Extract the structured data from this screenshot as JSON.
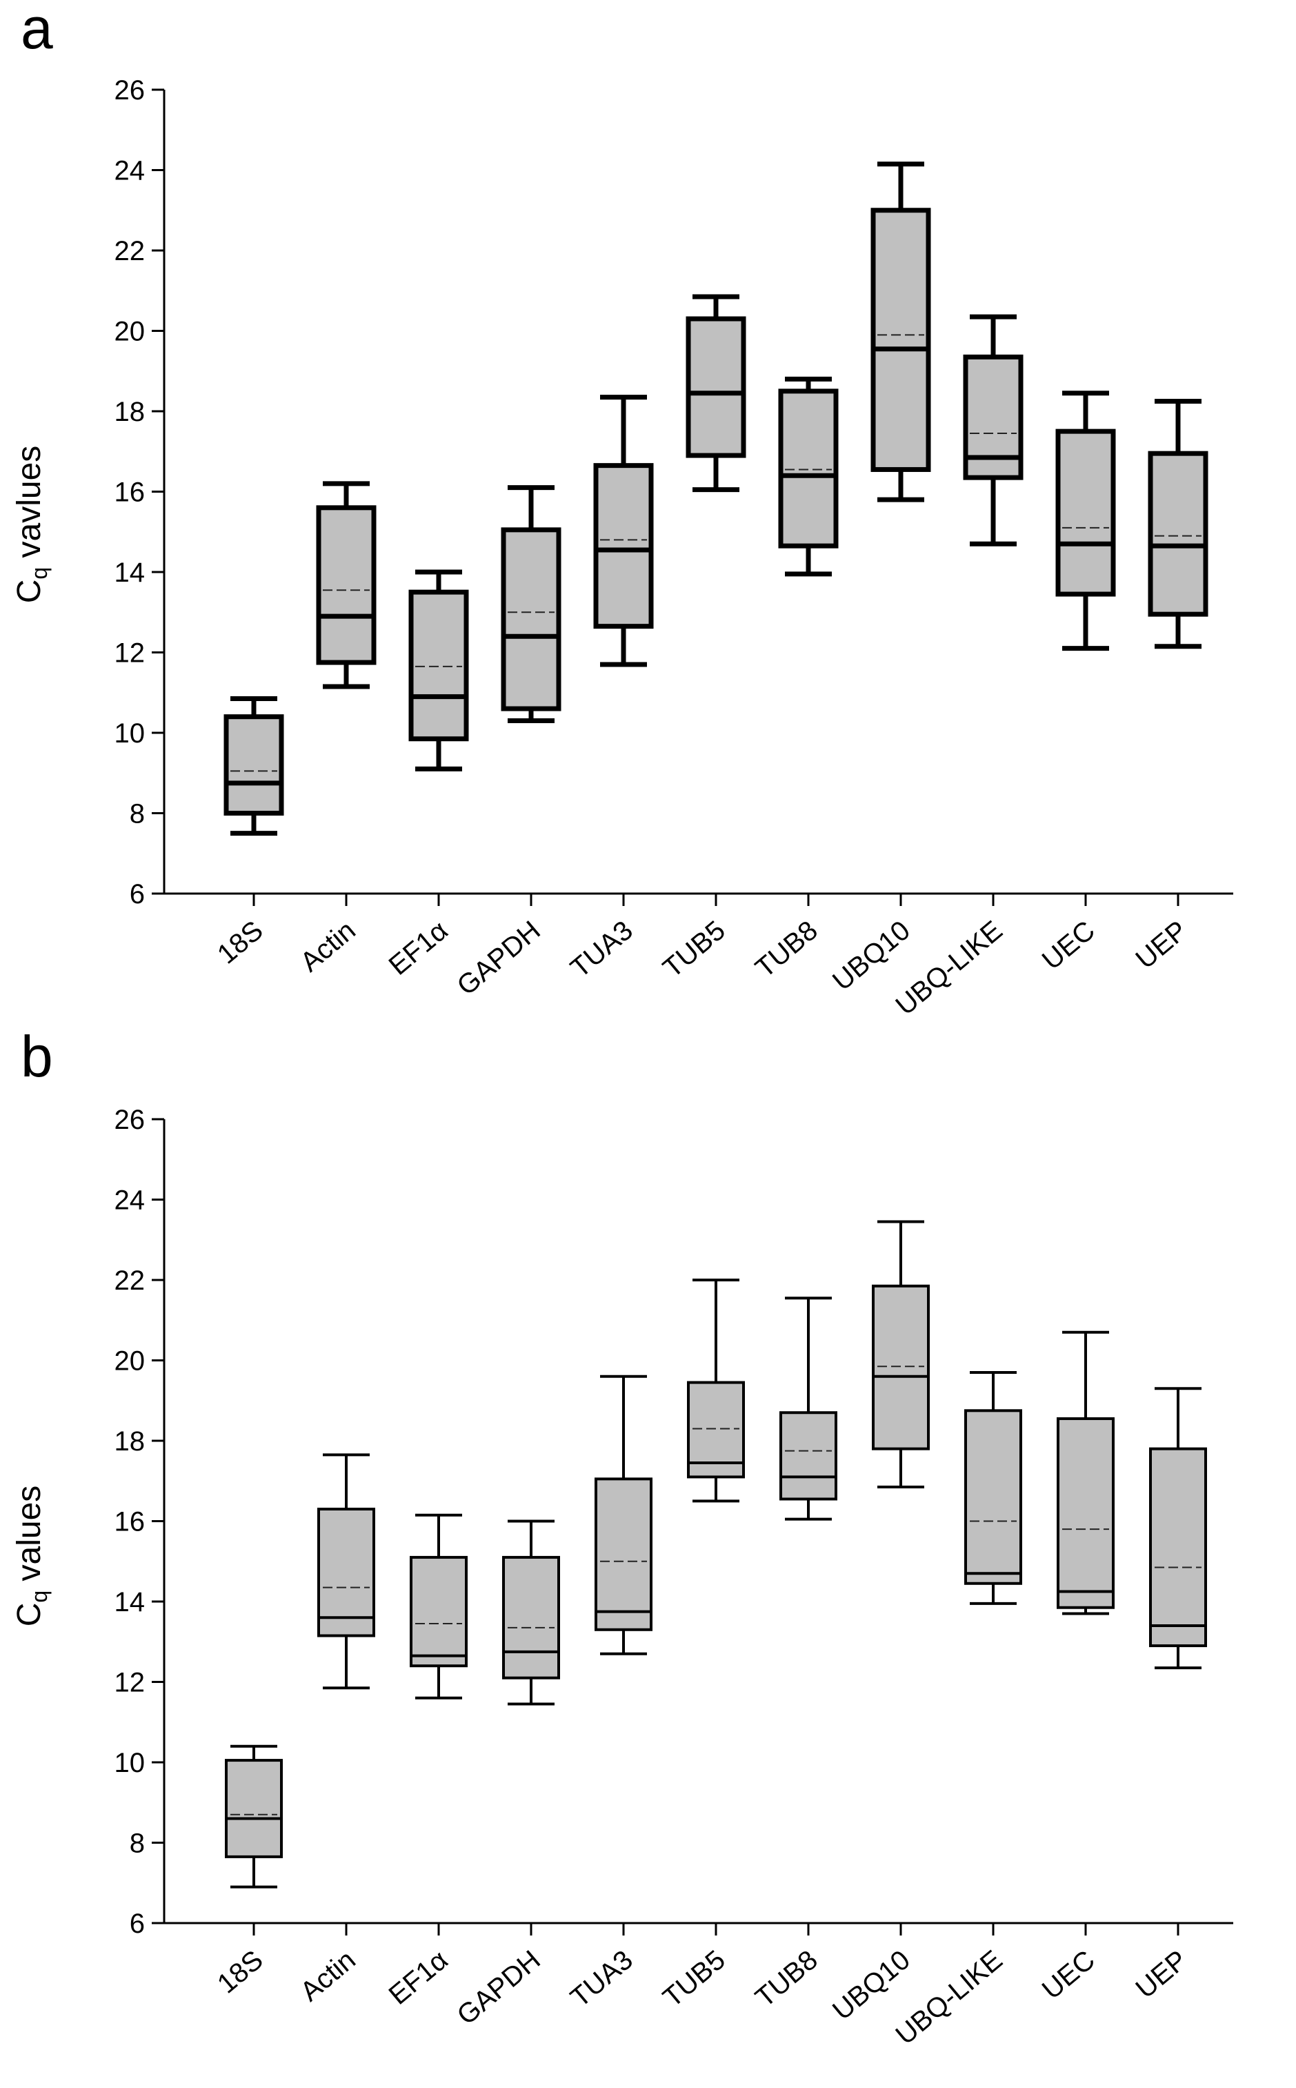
{
  "chart_data": [
    {
      "type": "box",
      "panel_label": "a",
      "ylabel_main": "C",
      "ylabel_subscript": "q",
      "ylabel_rest": " vavlues",
      "ylim": [
        6,
        26
      ],
      "yticks": [
        "6",
        "8",
        "10",
        "12",
        "14",
        "16",
        "18",
        "20",
        "22",
        "24",
        "26"
      ],
      "categories": [
        "18S",
        "Actin",
        "EF1α",
        "GAPDH",
        "TUA3",
        "TUB5",
        "TUB8",
        "UBQ10",
        "UBQ-LIKE",
        "UEC",
        "UEP"
      ],
      "boxes": [
        {
          "min": 7.5,
          "q1": 8.0,
          "median": 8.75,
          "mean": 9.05,
          "q3": 10.4,
          "max": 10.85
        },
        {
          "min": 11.15,
          "q1": 11.75,
          "median": 12.9,
          "mean": 13.55,
          "q3": 15.6,
          "max": 16.2
        },
        {
          "min": 9.1,
          "q1": 9.85,
          "median": 10.9,
          "mean": 11.65,
          "q3": 13.5,
          "max": 14.0
        },
        {
          "min": 10.3,
          "q1": 10.6,
          "median": 12.4,
          "mean": 13.0,
          "q3": 15.05,
          "max": 16.1
        },
        {
          "min": 11.7,
          "q1": 12.65,
          "median": 14.55,
          "mean": 14.8,
          "q3": 16.65,
          "max": 18.35
        },
        {
          "min": 16.05,
          "q1": 16.9,
          "median": 18.45,
          "mean": 18.45,
          "q3": 20.3,
          "max": 20.85
        },
        {
          "min": 13.95,
          "q1": 14.65,
          "median": 16.4,
          "mean": 16.55,
          "q3": 18.5,
          "max": 18.8
        },
        {
          "min": 15.8,
          "q1": 16.55,
          "median": 19.55,
          "mean": 19.9,
          "q3": 23.0,
          "max": 24.15
        },
        {
          "min": 14.7,
          "q1": 16.35,
          "median": 16.85,
          "mean": 17.45,
          "q3": 19.35,
          "max": 20.35
        },
        {
          "min": 12.1,
          "q1": 13.45,
          "median": 14.7,
          "mean": 15.1,
          "q3": 17.5,
          "max": 18.45
        },
        {
          "min": 12.15,
          "q1": 12.95,
          "median": 14.65,
          "mean": 14.9,
          "q3": 16.95,
          "max": 18.25
        }
      ]
    },
    {
      "type": "box",
      "panel_label": "b",
      "ylabel_main": "C",
      "ylabel_subscript": "q",
      "ylabel_rest": " values",
      "ylim": [
        6,
        26
      ],
      "yticks": [
        "6",
        "8",
        "10",
        "12",
        "14",
        "16",
        "18",
        "20",
        "22",
        "24",
        "26"
      ],
      "categories": [
        "18S",
        "Actin",
        "EF1α",
        "GAPDH",
        "TUA3",
        "TUB5",
        "TUB8",
        "UBQ10",
        "UBQ-LIKE",
        "UEC",
        "UEP"
      ],
      "boxes": [
        {
          "min": 6.9,
          "q1": 7.65,
          "median": 8.6,
          "mean": 8.7,
          "q3": 10.05,
          "max": 10.4
        },
        {
          "min": 11.85,
          "q1": 13.15,
          "median": 13.6,
          "mean": 14.35,
          "q3": 16.3,
          "max": 17.65
        },
        {
          "min": 11.6,
          "q1": 12.4,
          "median": 12.65,
          "mean": 13.45,
          "q3": 15.1,
          "max": 16.15
        },
        {
          "min": 11.45,
          "q1": 12.1,
          "median": 12.75,
          "mean": 13.35,
          "q3": 15.1,
          "max": 16.0
        },
        {
          "min": 12.7,
          "q1": 13.3,
          "median": 13.75,
          "mean": 15.0,
          "q3": 17.05,
          "max": 19.6
        },
        {
          "min": 16.5,
          "q1": 17.1,
          "median": 17.45,
          "mean": 18.3,
          "q3": 19.45,
          "max": 22.0
        },
        {
          "min": 16.05,
          "q1": 16.55,
          "median": 17.1,
          "mean": 17.75,
          "q3": 18.7,
          "max": 21.55
        },
        {
          "min": 16.85,
          "q1": 17.8,
          "median": 19.6,
          "mean": 19.85,
          "q3": 21.85,
          "max": 23.45
        },
        {
          "min": 13.95,
          "q1": 14.45,
          "median": 14.7,
          "mean": 16.0,
          "q3": 18.75,
          "max": 19.7
        },
        {
          "min": 13.7,
          "q1": 13.85,
          "median": 14.25,
          "mean": 15.8,
          "q3": 18.55,
          "max": 20.7
        },
        {
          "min": 12.35,
          "q1": 12.9,
          "median": 13.4,
          "mean": 14.85,
          "q3": 17.8,
          "max": 19.3
        }
      ]
    }
  ]
}
